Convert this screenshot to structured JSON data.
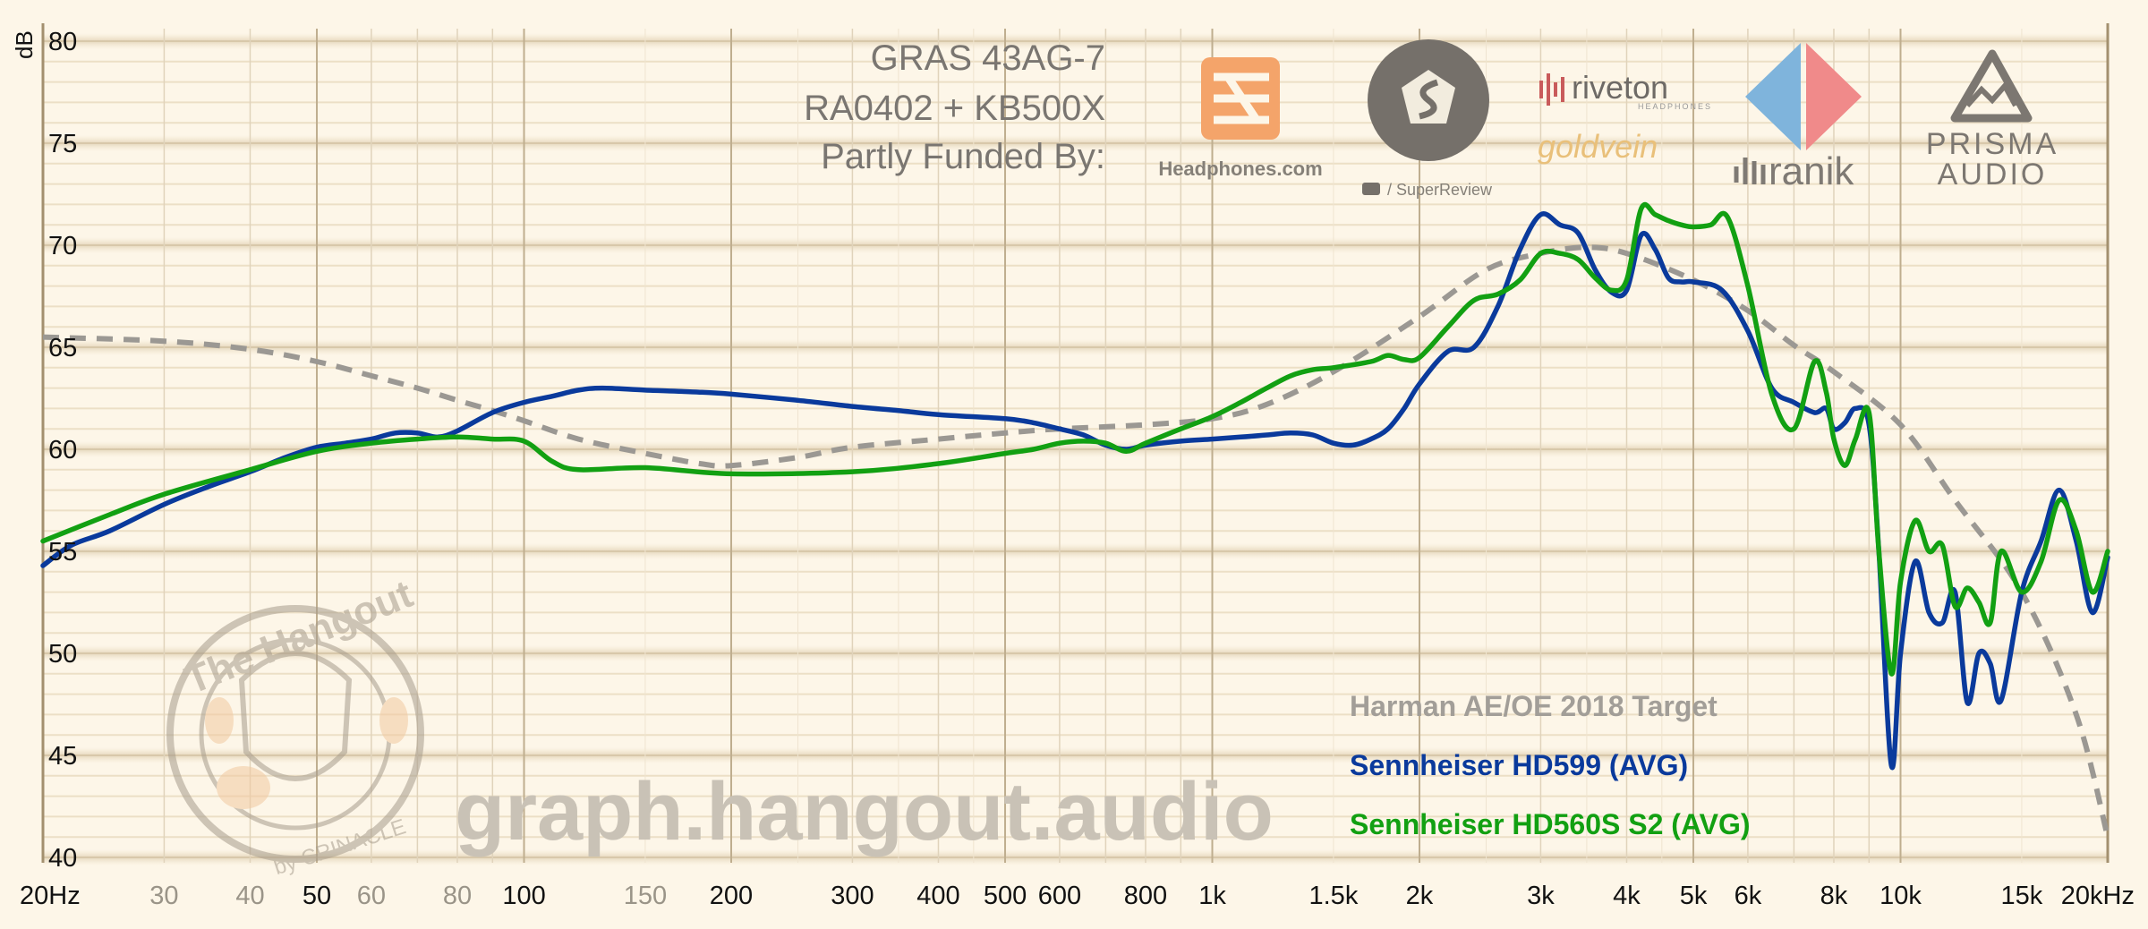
{
  "header": {
    "line1": "GRAS 43AG-7",
    "line2": "RA0402 + KB500X",
    "line3": "Partly Funded By:"
  },
  "sponsors": {
    "headphones": "Headphones.com",
    "superreview": "/ SuperReview",
    "riveton": "riveton",
    "riveton_sub": "HEADPHONES",
    "goldvein": "goldvein",
    "siaranik": "ranik",
    "prisma1": "PRISMA",
    "prisma2": "AUDIO"
  },
  "watermark": {
    "url": "graph.hangout.audio",
    "badge_title": "The Hangout",
    "badge_sub": "by CRINACLE"
  },
  "colors": {
    "background": "#fdf6e8",
    "target": "#9b9893",
    "hd599": "#0a3a9c",
    "hd560s": "#12a012"
  },
  "chart_data": {
    "type": "line",
    "x_scale": "log",
    "xlim": [
      20,
      20000
    ],
    "ylim": [
      40,
      80
    ],
    "ylabel": "dB",
    "grid": true,
    "legend_position": "bottom-right",
    "y_ticks": [
      "80",
      "75",
      "70",
      "65",
      "60",
      "55",
      "50",
      "45",
      "40"
    ],
    "x_ticks": [
      {
        "v": 20,
        "label": "20Hz",
        "major": true
      },
      {
        "v": 30,
        "label": "30",
        "major": false
      },
      {
        "v": 40,
        "label": "40",
        "major": false
      },
      {
        "v": 50,
        "label": "50",
        "major": true
      },
      {
        "v": 60,
        "label": "60",
        "major": false
      },
      {
        "v": 80,
        "label": "80",
        "major": false
      },
      {
        "v": 100,
        "label": "100",
        "major": true
      },
      {
        "v": 150,
        "label": "150",
        "major": false
      },
      {
        "v": 200,
        "label": "200",
        "major": true
      },
      {
        "v": 300,
        "label": "300",
        "major": true
      },
      {
        "v": 400,
        "label": "400",
        "major": true
      },
      {
        "v": 500,
        "label": "500",
        "major": true
      },
      {
        "v": 600,
        "label": "600",
        "major": true
      },
      {
        "v": 800,
        "label": "800",
        "major": true
      },
      {
        "v": 1000,
        "label": "1k",
        "major": true
      },
      {
        "v": 1500,
        "label": "1.5k",
        "major": true
      },
      {
        "v": 2000,
        "label": "2k",
        "major": true
      },
      {
        "v": 3000,
        "label": "3k",
        "major": true
      },
      {
        "v": 4000,
        "label": "4k",
        "major": true
      },
      {
        "v": 5000,
        "label": "5k",
        "major": true
      },
      {
        "v": 6000,
        "label": "6k",
        "major": true
      },
      {
        "v": 8000,
        "label": "8k",
        "major": true
      },
      {
        "v": 10000,
        "label": "10k",
        "major": true
      },
      {
        "v": 15000,
        "label": "15k",
        "major": true
      },
      {
        "v": 20000,
        "label": "20kHz",
        "major": true
      }
    ],
    "series": [
      {
        "name": "Harman AE/OE 2018 Target",
        "color": "#9b9893",
        "dashed": true,
        "x": [
          20,
          30,
          40,
          50,
          60,
          70,
          80,
          90,
          100,
          120,
          150,
          180,
          200,
          250,
          300,
          400,
          500,
          600,
          800,
          1000,
          1200,
          1500,
          2000,
          2500,
          3000,
          3500,
          4000,
          5000,
          6000,
          7000,
          8000,
          10000,
          12000,
          15000,
          18000,
          20000
        ],
        "y": [
          65.5,
          65.3,
          64.9,
          64.3,
          63.6,
          63.0,
          62.4,
          61.9,
          61.4,
          60.5,
          59.8,
          59.3,
          59.2,
          59.6,
          60.1,
          60.5,
          60.8,
          61.0,
          61.2,
          61.5,
          62.2,
          63.8,
          66.5,
          68.8,
          69.6,
          69.9,
          69.6,
          68.3,
          66.8,
          65.1,
          63.8,
          61.2,
          57.5,
          53.0,
          47.0,
          41.0
        ]
      },
      {
        "name": "Sennheiser HD599 (AVG)",
        "color": "#0a3a9c",
        "dashed": false,
        "x": [
          20,
          22,
          25,
          30,
          35,
          40,
          45,
          50,
          55,
          60,
          65,
          70,
          75,
          80,
          90,
          100,
          110,
          120,
          130,
          150,
          180,
          200,
          250,
          300,
          350,
          400,
          500,
          550,
          600,
          650,
          700,
          750,
          800,
          900,
          1000,
          1100,
          1200,
          1300,
          1400,
          1500,
          1600,
          1700,
          1800,
          1900,
          2000,
          2200,
          2400,
          2600,
          2800,
          3000,
          3200,
          3400,
          3600,
          3800,
          4000,
          4200,
          4400,
          4600,
          4800,
          5000,
          5500,
          6000,
          6500,
          7000,
          7500,
          7800,
          8000,
          8300,
          8600,
          9000,
          9300,
          9700,
          10000,
          10500,
          11000,
          11500,
          12000,
          12500,
          13000,
          13500,
          14000,
          15000,
          16000,
          17000,
          18000,
          19000,
          20000
        ],
        "y": [
          54.3,
          55.3,
          56.0,
          57.3,
          58.2,
          58.9,
          59.6,
          60.1,
          60.3,
          60.5,
          60.8,
          60.8,
          60.6,
          60.9,
          61.8,
          62.3,
          62.6,
          62.9,
          63.0,
          62.9,
          62.8,
          62.7,
          62.4,
          62.1,
          61.9,
          61.7,
          61.5,
          61.3,
          61.0,
          60.7,
          60.2,
          60.0,
          60.2,
          60.4,
          60.5,
          60.6,
          60.7,
          60.8,
          60.7,
          60.3,
          60.2,
          60.5,
          61.0,
          62.0,
          63.2,
          64.8,
          65.0,
          67.0,
          69.8,
          71.5,
          71.0,
          70.6,
          68.8,
          67.7,
          67.8,
          70.5,
          69.8,
          68.4,
          68.2,
          68.2,
          67.8,
          65.8,
          63.0,
          62.3,
          61.8,
          62.0,
          61.0,
          61.3,
          62.0,
          61.2,
          55.0,
          44.5,
          50.0,
          54.5,
          52.0,
          51.5,
          53.0,
          47.6,
          50.0,
          49.5,
          47.7,
          53.0,
          55.5,
          58.0,
          55.5,
          52.0,
          54.7
        ]
      },
      {
        "name": "Sennheiser HD560S S2 (AVG)",
        "color": "#12a012",
        "dashed": false,
        "x": [
          20,
          25,
          30,
          40,
          50,
          60,
          70,
          80,
          90,
          100,
          110,
          120,
          150,
          200,
          300,
          400,
          500,
          550,
          600,
          650,
          700,
          750,
          800,
          900,
          1000,
          1100,
          1200,
          1300,
          1400,
          1500,
          1700,
          1800,
          1900,
          2000,
          2200,
          2400,
          2600,
          2800,
          3000,
          3200,
          3400,
          3600,
          3800,
          4000,
          4200,
          4400,
          4600,
          4800,
          5000,
          5300,
          5600,
          6000,
          6500,
          7000,
          7500,
          7800,
          8000,
          8300,
          8600,
          9000,
          9300,
          9700,
          10000,
          10500,
          11000,
          11500,
          12000,
          12500,
          13000,
          13500,
          14000,
          15000,
          16000,
          17000,
          18000,
          19000,
          20000
        ],
        "y": [
          55.5,
          56.8,
          57.8,
          59.0,
          59.9,
          60.3,
          60.5,
          60.6,
          60.5,
          60.4,
          59.4,
          59.0,
          59.1,
          58.8,
          58.9,
          59.3,
          59.8,
          60.0,
          60.3,
          60.4,
          60.3,
          59.9,
          60.3,
          61.0,
          61.6,
          62.3,
          63.0,
          63.6,
          63.9,
          64.0,
          64.3,
          64.6,
          64.4,
          64.5,
          66.0,
          67.3,
          67.6,
          68.3,
          69.6,
          69.6,
          69.3,
          68.4,
          67.8,
          68.3,
          71.8,
          71.5,
          71.2,
          71.0,
          70.9,
          71.0,
          71.4,
          68.0,
          62.7,
          61.0,
          64.3,
          62.8,
          60.5,
          59.2,
          60.5,
          61.8,
          55.0,
          49.0,
          53.5,
          56.5,
          55.0,
          55.3,
          52.3,
          53.2,
          52.5,
          51.5,
          55.0,
          53.0,
          54.5,
          57.5,
          56.0,
          53.0,
          55.0
        ]
      }
    ]
  }
}
